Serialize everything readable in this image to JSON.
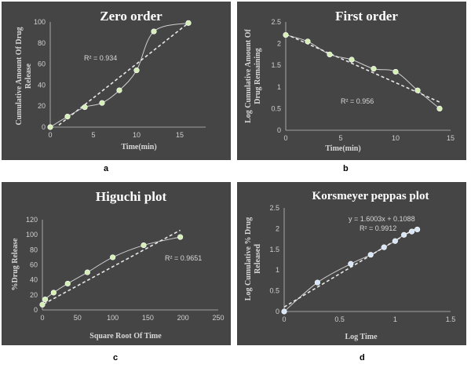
{
  "panels": [
    "a",
    "b",
    "c",
    "d"
  ],
  "chart_data": [
    {
      "type": "scatter",
      "title": "Zero order",
      "xlabel": "Time(min)",
      "ylabel": "Cumulative Amount Of Drug Release",
      "xlim": [
        0,
        18
      ],
      "ylim": [
        0,
        100
      ],
      "xticks": [
        0,
        5,
        10,
        15
      ],
      "yticks": [
        0,
        20,
        40,
        60,
        80,
        100
      ],
      "x": [
        0,
        2,
        4,
        6,
        8,
        10,
        12,
        16
      ],
      "y": [
        0,
        10,
        19,
        23,
        35,
        54,
        91,
        99
      ],
      "annotation": "R² = 0.934",
      "trend": {
        "type": "linear",
        "from": [
          1,
          2
        ],
        "to": [
          16,
          99
        ]
      },
      "grid": false,
      "colors": {
        "background": "#454545",
        "marker": "#d5f0b5",
        "line": "#e8e8e8"
      }
    },
    {
      "type": "scatter",
      "title": "First order",
      "xlabel": "Time(min)",
      "ylabel": "Log Cumulative Amount Of Drug Remaining",
      "xlim": [
        0,
        15
      ],
      "ylim": [
        0,
        2.5
      ],
      "xticks": [
        0,
        5,
        10,
        15
      ],
      "yticks": [
        0,
        0.5,
        1,
        1.5,
        2,
        2.5
      ],
      "x": [
        0,
        2,
        4,
        6,
        8,
        10,
        12,
        14
      ],
      "y": [
        2.2,
        2.05,
        1.75,
        1.63,
        1.42,
        1.35,
        0.92,
        0.5
      ],
      "annotation": "R² = 0.956",
      "trend": {
        "type": "linear",
        "from": [
          0,
          2.22
        ],
        "to": [
          14,
          0.65
        ]
      },
      "grid": false,
      "colors": {
        "background": "#454545",
        "marker": "#d5f0b5",
        "line": "#e8e8e8"
      }
    },
    {
      "type": "scatter",
      "title": "Higuchi plot",
      "xlabel": "Square Root Of Time",
      "ylabel": "%Drug Release",
      "xlim": [
        0,
        250
      ],
      "ylim": [
        0,
        120
      ],
      "xticks": [
        0,
        50,
        100,
        150,
        200,
        250
      ],
      "yticks": [
        0,
        20,
        40,
        60,
        80,
        100,
        120
      ],
      "x": [
        0,
        4,
        16,
        36,
        64,
        100,
        144,
        196
      ],
      "y": [
        7,
        14,
        23,
        35,
        50,
        70,
        86,
        97
      ],
      "annotation": "R² = 0.9651",
      "trend": {
        "type": "linear",
        "from": [
          2,
          8
        ],
        "to": [
          196,
          106
        ]
      },
      "grid": false,
      "colors": {
        "background": "#454545",
        "marker": "#d5f0b5",
        "line": "#e8e8e8"
      }
    },
    {
      "type": "scatter",
      "title": "Korsmeyer peppas  plot",
      "xlabel": "Log Time",
      "ylabel": "Log Cumulative % Drug Released",
      "xlim": [
        0,
        1.5
      ],
      "ylim": [
        0,
        2.5
      ],
      "xticks": [
        0,
        0.5,
        1,
        1.5
      ],
      "yticks": [
        0,
        0.5,
        1,
        1.5,
        2,
        2.5
      ],
      "x": [
        0,
        0.3,
        0.6,
        0.78,
        0.9,
        1.0,
        1.08,
        1.15,
        1.2
      ],
      "y": [
        0,
        0.7,
        1.15,
        1.37,
        1.55,
        1.7,
        1.85,
        1.93,
        1.98
      ],
      "annotation": "y = 1.6003x + 0.1088\nR² = 0.9912",
      "trend": {
        "type": "linear",
        "from": [
          0,
          0.1088
        ],
        "to": [
          1.2,
          2.029
        ]
      },
      "grid": false,
      "colors": {
        "background": "#454545",
        "marker": "#d6e6f7",
        "line": "#e8e8e8"
      }
    }
  ]
}
